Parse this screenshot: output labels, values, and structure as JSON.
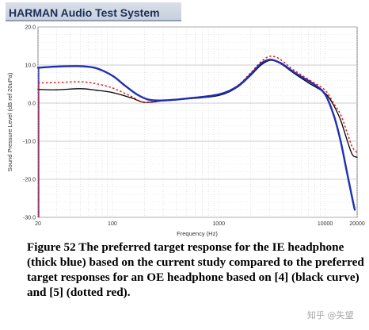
{
  "header": {
    "title": "HARMAN Audio Test System"
  },
  "chart_data": {
    "type": "line",
    "title": "",
    "xlabel": "Frequency (Hz)",
    "ylabel": "Sound Pressure Level (dB ref 20uPa)",
    "xscale": "log",
    "xlim": [
      20,
      20000
    ],
    "ylim": [
      -30,
      20
    ],
    "x_ticks": [
      20,
      100,
      1000,
      10000,
      20000
    ],
    "x_tick_labels": [
      "20",
      "100",
      "1000",
      "10000",
      "20000"
    ],
    "y_ticks": [
      20,
      10,
      0,
      -10,
      -20,
      -30
    ],
    "y_tick_labels": [
      "20.0",
      "10.0",
      "0.0",
      "-10.0",
      "-20.0",
      "-30.0"
    ],
    "grid": true,
    "legend": "none",
    "series": [
      {
        "color": "#1f2fb3",
        "style": "thick-solid",
        "points": [
          [
            20,
            9.3
          ],
          [
            30,
            9.6
          ],
          [
            50,
            9.7
          ],
          [
            70,
            9.2
          ],
          [
            100,
            7.2
          ],
          [
            130,
            4.7
          ],
          [
            170,
            2.3
          ],
          [
            220,
            0.9
          ],
          [
            300,
            0.7
          ],
          [
            500,
            1.2
          ],
          [
            1000,
            2.3
          ],
          [
            1500,
            4.4
          ],
          [
            2000,
            7.6
          ],
          [
            2500,
            10.4
          ],
          [
            3000,
            11.4
          ],
          [
            3500,
            11.0
          ],
          [
            4000,
            10.2
          ],
          [
            5000,
            8.3
          ],
          [
            6000,
            6.9
          ],
          [
            8000,
            4.8
          ],
          [
            10000,
            2.3
          ],
          [
            12000,
            -3.0
          ],
          [
            14000,
            -10.0
          ],
          [
            16000,
            -18.0
          ],
          [
            18000,
            -25.0
          ],
          [
            19000,
            -28.0
          ]
        ]
      },
      {
        "color": "#000000",
        "style": "solid",
        "points": [
          [
            20,
            3.6
          ],
          [
            30,
            3.5
          ],
          [
            50,
            3.8
          ],
          [
            70,
            3.4
          ],
          [
            100,
            2.8
          ],
          [
            150,
            1.4
          ],
          [
            200,
            0.2
          ],
          [
            300,
            0.6
          ],
          [
            500,
            1.1
          ],
          [
            1000,
            2.0
          ],
          [
            1500,
            4.2
          ],
          [
            2000,
            7.3
          ],
          [
            2500,
            10.0
          ],
          [
            3000,
            11.2
          ],
          [
            3500,
            10.9
          ],
          [
            4000,
            10.0
          ],
          [
            5000,
            8.0
          ],
          [
            7000,
            5.3
          ],
          [
            10000,
            2.6
          ],
          [
            12000,
            -0.5
          ],
          [
            14000,
            -4.5
          ],
          [
            16000,
            -9.5
          ],
          [
            18000,
            -13.5
          ],
          [
            20000,
            -14.2
          ]
        ]
      },
      {
        "color": "#e02020",
        "style": "dotted",
        "points": [
          [
            20,
            5.3
          ],
          [
            30,
            5.4
          ],
          [
            50,
            5.6
          ],
          [
            70,
            5.1
          ],
          [
            100,
            4.0
          ],
          [
            150,
            1.8
          ],
          [
            200,
            0.2
          ],
          [
            300,
            0.6
          ],
          [
            500,
            1.2
          ],
          [
            1000,
            2.3
          ],
          [
            1500,
            4.6
          ],
          [
            2000,
            8.0
          ],
          [
            2500,
            10.9
          ],
          [
            3000,
            12.3
          ],
          [
            3500,
            12.0
          ],
          [
            4000,
            11.0
          ],
          [
            5000,
            8.8
          ],
          [
            7000,
            6.2
          ],
          [
            10000,
            3.4
          ],
          [
            12000,
            0.0
          ],
          [
            14000,
            -3.0
          ],
          [
            16000,
            -7.5
          ],
          [
            18000,
            -11.5
          ],
          [
            20000,
            -13.0
          ]
        ]
      }
    ]
  },
  "caption": {
    "text": "Figure 52 The preferred target response for the IE headphone (thick blue) based on the current study compared to the preferred target responses for an OE headphone based on [4] (black curve) and [5] (dotted red)."
  },
  "watermark": {
    "text": "知乎 @失望"
  }
}
